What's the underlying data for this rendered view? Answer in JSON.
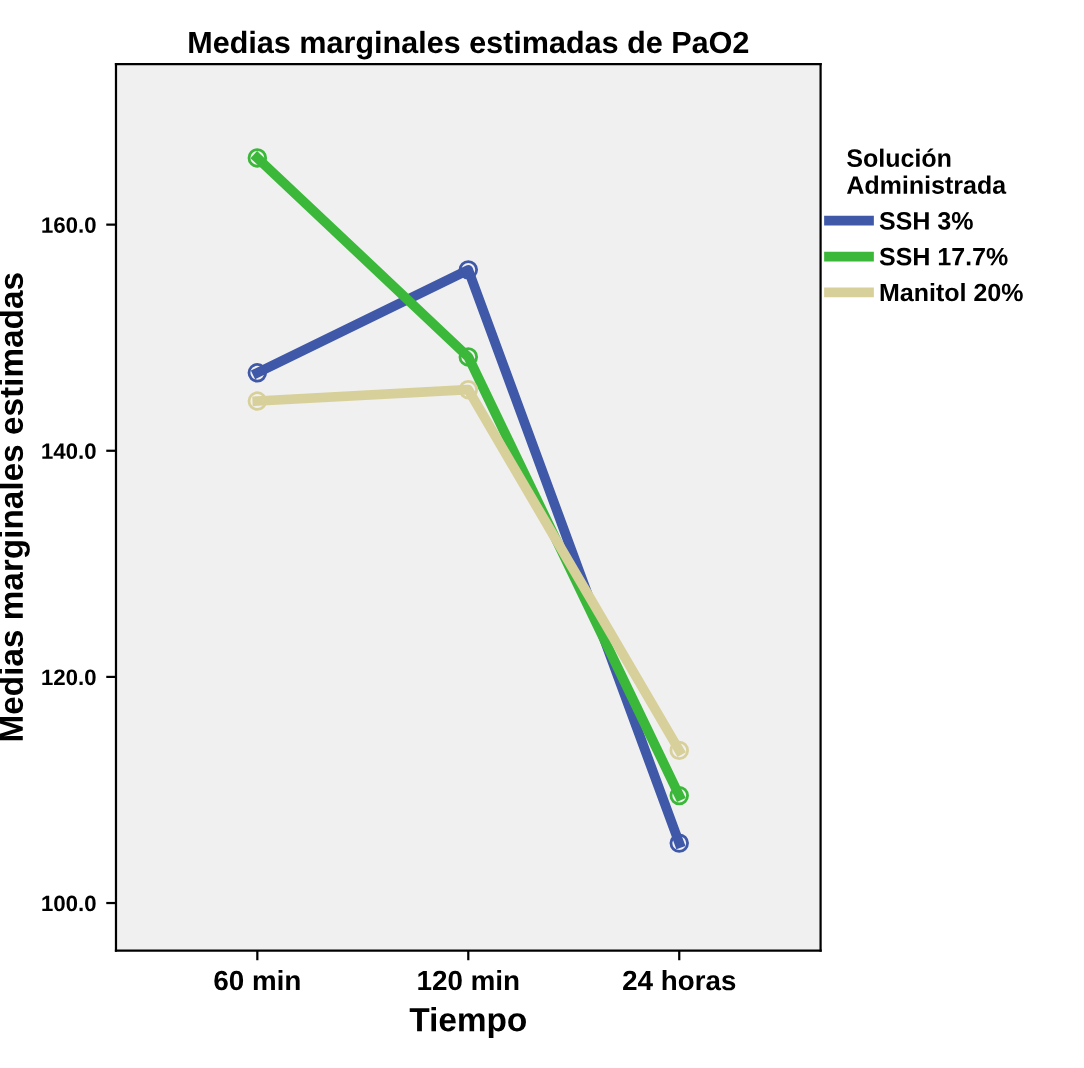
{
  "chart_data": {
    "type": "line",
    "title": "Medias marginales estimadas de PaO2",
    "xlabel": "Tiempo",
    "ylabel": "Medias marginales estimadas",
    "legend_title": "Solución\nAdministrada",
    "categories": [
      "60 min",
      "120 min",
      "24 horas"
    ],
    "series": [
      {
        "name": "SSH 3%",
        "color": "#3f58a8",
        "values": [
          146.9,
          156.0,
          105.3
        ]
      },
      {
        "name": "SSH 17.7%",
        "color": "#3bb83a",
        "values": [
          165.9,
          148.3,
          109.5
        ]
      },
      {
        "name": "Manitol 20%",
        "color": "#d8d09a",
        "values": [
          144.4,
          145.4,
          113.5
        ]
      }
    ],
    "ylim": [
      95.8,
      174.2
    ],
    "yticks": [
      {
        "value": 100,
        "label": "100.0"
      },
      {
        "value": 120,
        "label": "120.0"
      },
      {
        "value": 140,
        "label": "140.0"
      },
      {
        "value": 160,
        "label": "160.0"
      }
    ],
    "marker": "circle",
    "line_style": "solid",
    "legend": "right",
    "grid": false
  }
}
